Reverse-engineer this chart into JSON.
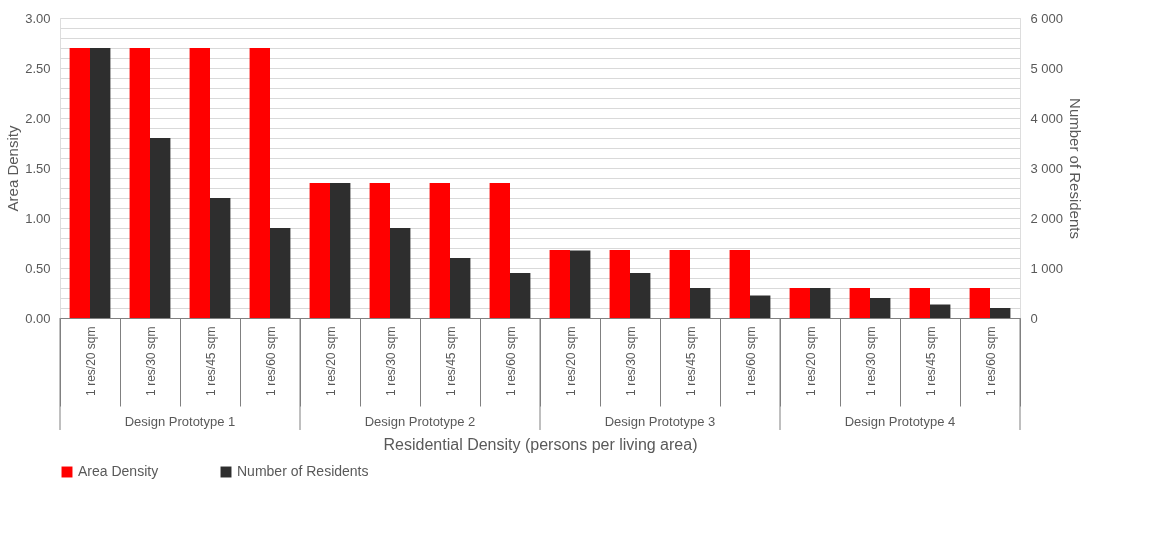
{
  "chart_data": {
    "type": "bar",
    "categories": [
      "1 res/20 sqm",
      "1 res/30 sqm",
      "1 res/45 sqm",
      "1 res/60 sqm",
      "1 res/20 sqm",
      "1 res/30 sqm",
      "1 res/45 sqm",
      "1 res/60 sqm",
      "1 res/20 sqm",
      "1 res/30 sqm",
      "1 res/45 sqm",
      "1 res/60 sqm",
      "1 res/20 sqm",
      "1 res/30 sqm",
      "1 res/45 sqm",
      "1 res/60 sqm"
    ],
    "series": [
      {
        "name": "Area Density",
        "color": "#ff0000",
        "values": [
          2.7,
          2.7,
          2.7,
          2.7,
          1.35,
          1.35,
          1.35,
          1.35,
          0.68,
          0.68,
          0.68,
          0.68,
          0.3,
          0.3,
          0.3,
          0.3
        ]
      },
      {
        "name": "Number of Residents",
        "color": "#2e2e2e",
        "axis": "y2",
        "values": [
          5400,
          3600,
          2400,
          1800,
          2700,
          1800,
          1200,
          900,
          1350,
          900,
          600,
          450,
          600,
          400,
          270,
          200
        ]
      }
    ],
    "xlabel": "Residential Density (persons per living area)",
    "ylabel": "Area Density",
    "y2label": "Number of Residents",
    "annotations": [
      "Design Prototype 1",
      "Design Prototype 2",
      "Design Prototype 3",
      "Design Prototype 4"
    ],
    "ylim": [
      0,
      3
    ],
    "yticks": [
      {
        "value": 0,
        "label": "0.00"
      },
      {
        "value": 0.1,
        "label": null
      },
      {
        "value": 0.2,
        "label": null
      },
      {
        "value": 0.3,
        "label": null
      },
      {
        "value": 0.4,
        "label": null
      },
      {
        "value": 0.5,
        "label": "0.50"
      },
      {
        "value": 0.6,
        "label": null
      },
      {
        "value": 0.7,
        "label": null
      },
      {
        "value": 0.8,
        "label": null
      },
      {
        "value": 0.9,
        "label": null
      },
      {
        "value": 1,
        "label": "1.00"
      },
      {
        "value": 1.1,
        "label": null
      },
      {
        "value": 1.2,
        "label": null
      },
      {
        "value": 1.3,
        "label": null
      },
      {
        "value": 1.4,
        "label": null
      },
      {
        "value": 1.5,
        "label": "1.50"
      },
      {
        "value": 1.6,
        "label": null
      },
      {
        "value": 1.7,
        "label": null
      },
      {
        "value": 1.8,
        "label": null
      },
      {
        "value": 1.9,
        "label": null
      },
      {
        "value": 2,
        "label": "2.00"
      },
      {
        "value": 2.1,
        "label": null
      },
      {
        "value": 2.2,
        "label": null
      },
      {
        "value": 2.3,
        "label": null
      },
      {
        "value": 2.4,
        "label": null
      },
      {
        "value": 2.5,
        "label": "2.50"
      },
      {
        "value": 2.6,
        "label": null
      },
      {
        "value": 2.7,
        "label": null
      },
      {
        "value": 2.8,
        "label": null
      },
      {
        "value": 2.9,
        "label": null
      },
      {
        "value": 3,
        "label": "3.00"
      }
    ],
    "y2lim": [
      0,
      6000
    ],
    "y2ticks": [
      0,
      {
        "value": 1000,
        "label": "1 000"
      },
      {
        "value": 2000,
        "label": "2 000"
      },
      {
        "value": 3000,
        "label": "3 000"
      },
      {
        "value": 4000,
        "label": "4 000"
      },
      {
        "value": 5000,
        "label": "5 000"
      },
      {
        "value": 6000,
        "label": "6 000"
      }
    ],
    "grid": true,
    "legend": "bottom"
  }
}
